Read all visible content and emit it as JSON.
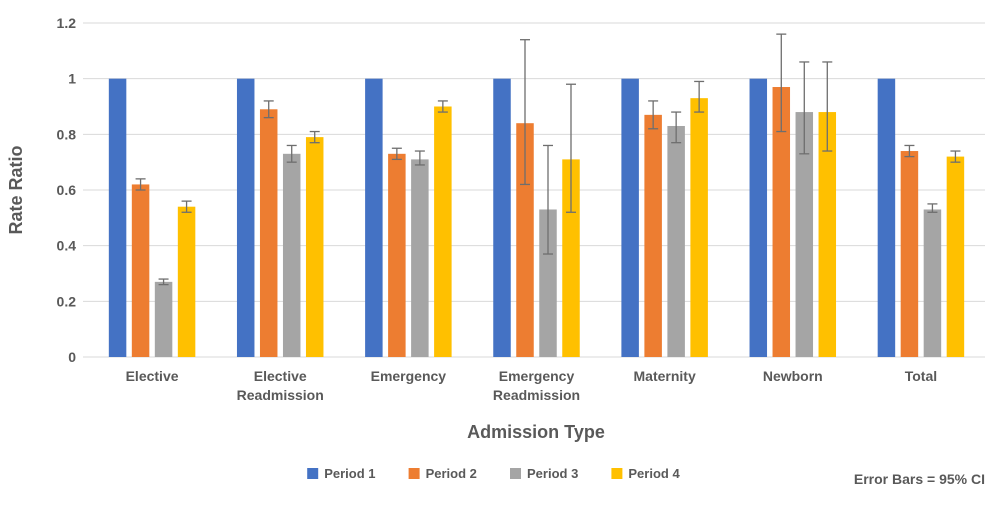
{
  "chart_data": {
    "type": "bar",
    "title": "",
    "xlabel": "Admission Type",
    "ylabel": "Rate Ratio",
    "annotation": "Error Bars = 95% CI",
    "ylim": [
      0,
      1.2
    ],
    "yticks": [
      0,
      0.2,
      0.4,
      0.6,
      0.8,
      1,
      1.2
    ],
    "ytick_labels": [
      "0",
      "0.2",
      "0.4",
      "0.6",
      "0.8",
      "1",
      "1.2"
    ],
    "grid": true,
    "legend_position": "bottom",
    "categories": [
      "Elective",
      "Elective Readmission",
      "Emergency",
      "Emergency Readmission",
      "Maternity",
      "Newborn",
      "Total"
    ],
    "series": [
      {
        "name": "Period 1",
        "color": "#4472C4",
        "values": [
          1,
          1,
          1,
          1,
          1,
          1,
          1
        ],
        "ci_low": [
          null,
          null,
          null,
          null,
          null,
          null,
          null
        ],
        "ci_high": [
          null,
          null,
          null,
          null,
          null,
          null,
          null
        ]
      },
      {
        "name": "Period 2",
        "color": "#ED7D31",
        "values": [
          0.62,
          0.89,
          0.73,
          0.84,
          0.87,
          0.97,
          0.74
        ],
        "ci_low": [
          0.6,
          0.86,
          0.71,
          0.62,
          0.82,
          0.81,
          0.72
        ],
        "ci_high": [
          0.64,
          0.92,
          0.75,
          1.14,
          0.92,
          1.16,
          0.76
        ]
      },
      {
        "name": "Period 3",
        "color": "#A5A5A5",
        "values": [
          0.27,
          0.73,
          0.71,
          0.53,
          0.83,
          0.88,
          0.53
        ],
        "ci_low": [
          0.26,
          0.7,
          0.69,
          0.37,
          0.77,
          0.73,
          0.52
        ],
        "ci_high": [
          0.28,
          0.76,
          0.74,
          0.76,
          0.88,
          1.06,
          0.55
        ]
      },
      {
        "name": "Period 4",
        "color": "#FFC000",
        "values": [
          0.54,
          0.79,
          0.9,
          0.71,
          0.93,
          0.88,
          0.72
        ],
        "ci_low": [
          0.52,
          0.77,
          0.88,
          0.52,
          0.88,
          0.74,
          0.7
        ],
        "ci_high": [
          0.56,
          0.81,
          0.92,
          0.98,
          0.99,
          1.06,
          0.74
        ]
      }
    ],
    "colors": {
      "text": "#595959",
      "gridline": "#D9D9D9",
      "error_bar": "#6e6e6e"
    }
  }
}
